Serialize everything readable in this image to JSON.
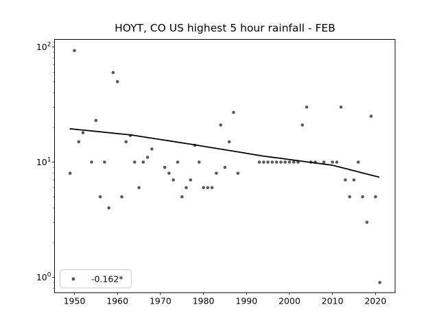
{
  "window": {
    "background": "#ffffff"
  },
  "chart_data": {
    "type": "scatter",
    "title": "HOYT, CO US highest 5 hour rainfall - FEB",
    "xlabel": "",
    "ylabel": "",
    "x_scale": "linear",
    "y_scale": "log",
    "xlim": [
      1945.3,
      2025.6
    ],
    "ylim": [
      0.72,
      117
    ],
    "x_ticks": [
      1950,
      1960,
      1970,
      1980,
      1990,
      2000,
      2010,
      2020
    ],
    "y_ticks": [
      1,
      10,
      100
    ],
    "grid": false,
    "legend_position": "lower left",
    "marker_color": "#595959",
    "trend_line_color": "#000000",
    "legend": {
      "label": "-0.162*",
      "marker": "dot-marker"
    },
    "series": [
      {
        "name": "highest 5 hour rainfall",
        "x": [
          1949,
          1950,
          1951,
          1952,
          1954,
          1955,
          1956,
          1957,
          1958,
          1959,
          1960,
          1961,
          1962,
          1963,
          1964,
          1965,
          1966,
          1967,
          1968,
          1971,
          1972,
          1973,
          1974,
          1975,
          1976,
          1977,
          1978,
          1979,
          1980,
          1981,
          1982,
          1983,
          1984,
          1985,
          1986,
          1987,
          1988,
          1993,
          1994,
          1995,
          1996,
          1997,
          1998,
          1999,
          2000,
          2001,
          2002,
          2003,
          2004,
          2005,
          2006,
          2008,
          2010,
          2011,
          2012,
          2013,
          2014,
          2015,
          2016,
          2017,
          2018,
          2019,
          2020,
          2021
        ],
        "y": [
          8,
          93,
          15,
          18,
          10,
          23,
          5,
          10,
          4,
          60,
          50,
          5,
          15,
          17,
          10,
          6,
          10,
          11,
          13,
          9,
          8,
          7,
          10,
          5,
          6,
          7,
          14,
          10,
          6,
          6,
          6,
          8,
          21,
          9,
          15,
          27,
          8,
          10,
          10,
          10,
          10,
          10,
          10,
          10,
          10,
          10,
          10,
          21,
          30,
          10,
          10,
          10,
          10,
          10,
          30,
          7,
          5,
          7,
          10,
          5,
          3,
          25,
          5,
          0.9
        ]
      }
    ],
    "trend": {
      "label": "-0.162*",
      "slope_per_year": -0.162,
      "points": [
        {
          "year": 1948.9,
          "value": 19.5
        },
        {
          "year": 1963.2,
          "value": 17.2
        },
        {
          "year": 1978.1,
          "value": 14.1
        },
        {
          "year": 1993.8,
          "value": 11.3
        },
        {
          "year": 2009.9,
          "value": 9.4
        },
        {
          "year": 2020.9,
          "value": 7.4
        }
      ]
    }
  }
}
